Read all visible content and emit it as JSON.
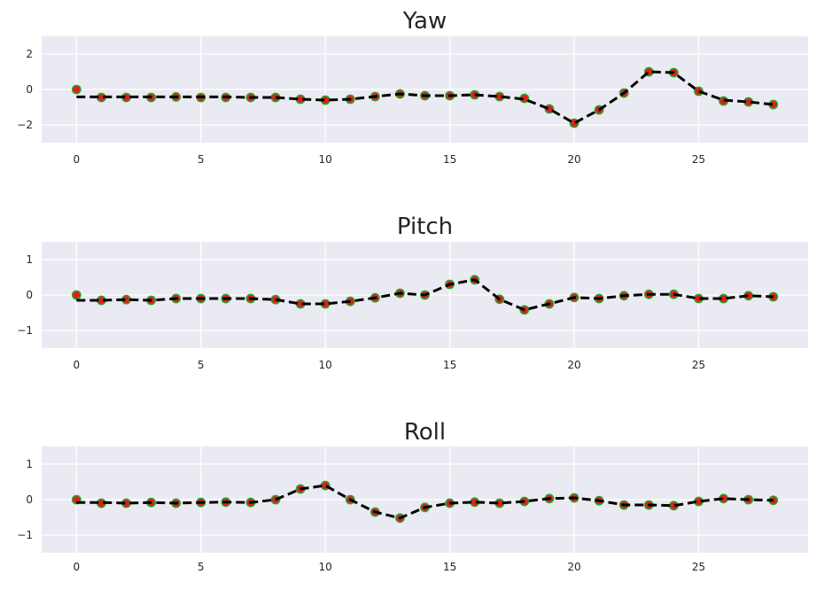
{
  "chart_data": [
    {
      "type": "line",
      "title": "Yaw",
      "xlim": [
        -1.4,
        29.4
      ],
      "ylim": [
        -3,
        3
      ],
      "xticks": [
        0,
        5,
        10,
        15,
        20,
        25
      ],
      "xtick_labels": [
        "0",
        "5",
        "10",
        "15",
        "20",
        "25"
      ],
      "yticks": [
        -2,
        0,
        2
      ],
      "ytick_labels": [
        "−2",
        "0",
        "2"
      ],
      "grid": true,
      "x": [
        0,
        1,
        2,
        3,
        4,
        5,
        6,
        7,
        8,
        9,
        10,
        11,
        12,
        13,
        14,
        15,
        16,
        17,
        18,
        19,
        20,
        21,
        22,
        23,
        24,
        25,
        26,
        27,
        28
      ],
      "series": [
        {
          "style": "red-markers",
          "values": [
            0.0,
            -0.45,
            -0.45,
            -0.45,
            -0.42,
            -0.45,
            -0.45,
            -0.45,
            -0.45,
            -0.55,
            -0.6,
            -0.55,
            -0.4,
            -0.25,
            -0.35,
            -0.35,
            -0.3,
            -0.4,
            -0.5,
            -1.1,
            -1.9,
            -1.15,
            -0.2,
            1.0,
            0.95,
            -0.1,
            -0.65,
            -0.7,
            -0.85
          ]
        },
        {
          "style": "black-dashed",
          "values": [
            -0.42,
            -0.42,
            -0.42,
            -0.42,
            -0.42,
            -0.42,
            -0.42,
            -0.45,
            -0.45,
            -0.55,
            -0.6,
            -0.55,
            -0.4,
            -0.25,
            -0.35,
            -0.35,
            -0.3,
            -0.4,
            -0.55,
            -1.1,
            -1.9,
            -1.15,
            -0.2,
            1.0,
            0.95,
            -0.1,
            -0.6,
            -0.7,
            -0.85
          ]
        }
      ]
    },
    {
      "type": "line",
      "title": "Pitch",
      "xlim": [
        -1.4,
        29.4
      ],
      "ylim": [
        -1.5,
        1.5
      ],
      "xticks": [
        0,
        5,
        10,
        15,
        20,
        25
      ],
      "xtick_labels": [
        "0",
        "5",
        "10",
        "15",
        "20",
        "25"
      ],
      "yticks": [
        -1,
        0,
        1
      ],
      "ytick_labels": [
        "−1",
        "0",
        "1"
      ],
      "grid": true,
      "x": [
        0,
        1,
        2,
        3,
        4,
        5,
        6,
        7,
        8,
        9,
        10,
        11,
        12,
        13,
        14,
        15,
        16,
        17,
        18,
        19,
        20,
        21,
        22,
        23,
        24,
        25,
        26,
        27,
        28
      ],
      "series": [
        {
          "style": "red-markers",
          "values": [
            0.0,
            -0.15,
            -0.13,
            -0.15,
            -0.1,
            -0.1,
            -0.1,
            -0.1,
            -0.13,
            -0.25,
            -0.25,
            -0.18,
            -0.08,
            0.05,
            0.0,
            0.3,
            0.43,
            -0.12,
            -0.42,
            -0.25,
            -0.07,
            -0.1,
            -0.02,
            0.02,
            0.02,
            -0.1,
            -0.1,
            -0.02,
            -0.05
          ]
        },
        {
          "style": "black-dashed",
          "values": [
            -0.15,
            -0.15,
            -0.13,
            -0.15,
            -0.1,
            -0.1,
            -0.1,
            -0.1,
            -0.13,
            -0.25,
            -0.25,
            -0.18,
            -0.08,
            0.05,
            0.0,
            0.3,
            0.43,
            -0.12,
            -0.42,
            -0.25,
            -0.07,
            -0.1,
            -0.02,
            0.02,
            0.02,
            -0.1,
            -0.1,
            -0.02,
            -0.05
          ]
        }
      ]
    },
    {
      "type": "line",
      "title": "Roll",
      "xlim": [
        -1.4,
        29.4
      ],
      "ylim": [
        -1.5,
        1.5
      ],
      "xticks": [
        0,
        5,
        10,
        15,
        20,
        25
      ],
      "xtick_labels": [
        "0",
        "5",
        "10",
        "15",
        "20",
        "25"
      ],
      "yticks": [
        -1,
        0,
        1
      ],
      "ytick_labels": [
        "−1",
        "0",
        "1"
      ],
      "grid": true,
      "x": [
        0,
        1,
        2,
        3,
        4,
        5,
        6,
        7,
        8,
        9,
        10,
        11,
        12,
        13,
        14,
        15,
        16,
        17,
        18,
        19,
        20,
        21,
        22,
        23,
        24,
        25,
        26,
        27,
        28
      ],
      "series": [
        {
          "style": "red-markers",
          "values": [
            0.0,
            -0.1,
            -0.1,
            -0.08,
            -0.1,
            -0.08,
            -0.07,
            -0.08,
            0.0,
            0.3,
            0.4,
            0.0,
            -0.35,
            -0.52,
            -0.22,
            -0.1,
            -0.07,
            -0.1,
            -0.05,
            0.03,
            0.05,
            -0.03,
            -0.15,
            -0.15,
            -0.17,
            -0.05,
            0.03,
            0.0,
            -0.02
          ]
        },
        {
          "style": "black-dashed",
          "values": [
            -0.08,
            -0.08,
            -0.1,
            -0.08,
            -0.1,
            -0.08,
            -0.07,
            -0.08,
            0.0,
            0.3,
            0.4,
            0.0,
            -0.35,
            -0.52,
            -0.22,
            -0.1,
            -0.07,
            -0.1,
            -0.05,
            0.03,
            0.05,
            -0.03,
            -0.15,
            -0.15,
            -0.17,
            -0.05,
            0.03,
            0.0,
            -0.02
          ]
        }
      ]
    }
  ]
}
